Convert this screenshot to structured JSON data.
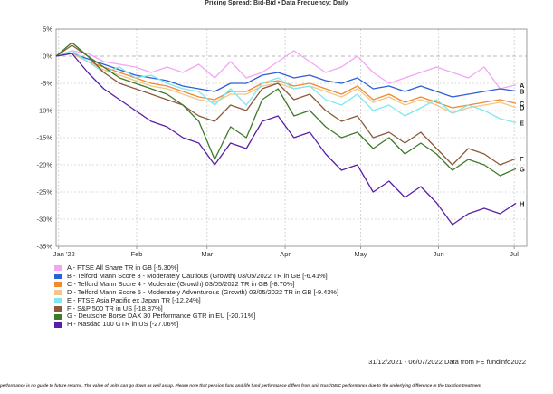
{
  "header": {
    "title": "Pricing Spread: Bid-Bid • Data Frequency: Daily"
  },
  "footer": {
    "source": "31/12/2021 - 06/07/2022 Data from FE fundinfo2022",
    "disclaimer": "performance is no guide to future returns. The value of units can go down as well as up. Please note that pension fund and life fund performance differs from unit trust/OEIC performance due to the underlying difference in the taxation treatment"
  },
  "chart_data": {
    "type": "line",
    "title": "Pricing Spread: Bid-Bid • Data Frequency: Daily",
    "xlabel": "",
    "ylabel": "",
    "ylim": [
      -35,
      5
    ],
    "yticks": [
      "5%",
      "0%",
      "-5%",
      "-10%",
      "-15%",
      "-20%",
      "-25%",
      "-30%",
      "-35%"
    ],
    "xticks": [
      "Jan '22",
      "Feb",
      "Mar",
      "Apr",
      "May",
      "Jun",
      "Jul"
    ],
    "x_start": "2021-12-31",
    "x_end": "2022-07-06",
    "grid": true,
    "legend_position": "bottom-left",
    "series": [
      {
        "name": "A - FTSE All Share TR in GB [-5.30%]",
        "label": "A",
        "color": "#f4a6f4",
        "values": [
          0,
          1,
          0.5,
          -1,
          -1.5,
          -2,
          -3,
          -2,
          -3,
          -1.5,
          -4,
          -1,
          -4,
          -3,
          -1,
          1,
          -1,
          -3,
          -2,
          0,
          -3,
          -5,
          -4,
          -3,
          -2,
          -3,
          -4,
          -2,
          -6,
          -5.3
        ]
      },
      {
        "name": "B - Telford Mann Score 3 - Moderately Cautious (Growth) 03/05/2022 TR in GB [-6.41%]",
        "label": "B",
        "color": "#2e5fd6",
        "values": [
          0,
          0.5,
          -0.5,
          -1.5,
          -2.5,
          -3.5,
          -4,
          -4.5,
          -5.5,
          -6,
          -6.5,
          -5,
          -5,
          -3.5,
          -3,
          -4,
          -3.5,
          -4.5,
          -5,
          -4,
          -6,
          -5.5,
          -6.5,
          -5.5,
          -6.5,
          -7.5,
          -7,
          -6.5,
          -6,
          -6.41
        ]
      },
      {
        "name": "C - Telford Mann Score 4 - Moderate (Growth) 03/05/2022 TR in GB [-8.70%]",
        "label": "C",
        "color": "#f08a2c",
        "values": [
          0,
          0.5,
          -1,
          -2,
          -3,
          -4,
          -5,
          -5.5,
          -6.5,
          -7.5,
          -8,
          -6.5,
          -6.5,
          -5,
          -4.5,
          -5.5,
          -5,
          -6,
          -7,
          -5.5,
          -8,
          -7,
          -8.5,
          -7.5,
          -8.5,
          -9.5,
          -9,
          -8.5,
          -8,
          -8.7
        ]
      },
      {
        "name": "D - Telford Mann Score 5 - Moderately Adventurous (Growth) 03/05/2022 TR in GB [-9.43%]",
        "label": "D",
        "color": "#f2c58a",
        "values": [
          0,
          0.5,
          -1,
          -2.5,
          -3.5,
          -4.5,
          -5.5,
          -6,
          -7,
          -8,
          -8.5,
          -7,
          -7,
          -5.5,
          -5,
          -6,
          -5.5,
          -6.5,
          -7.5,
          -6,
          -8.5,
          -7.5,
          -9,
          -8,
          -9,
          -10.5,
          -9.5,
          -9,
          -8.5,
          -9.43
        ]
      },
      {
        "name": "E - FTSE Asia Pacific ex Japan TR [-12.24%]",
        "label": "E",
        "color": "#7ee8f0",
        "values": [
          0,
          1,
          -1,
          -3,
          -2,
          -4,
          -3.5,
          -5,
          -6,
          -6.5,
          -9,
          -6,
          -9,
          -5,
          -4,
          -6,
          -5.5,
          -8,
          -9,
          -7,
          -10,
          -9,
          -11,
          -9.5,
          -8,
          -10.5,
          -9,
          -10,
          -11.5,
          -12.24
        ]
      },
      {
        "name": "F - S&P 500 TR in US [-18.87%]",
        "label": "F",
        "color": "#8b5a3c",
        "values": [
          0,
          2,
          0,
          -3,
          -5,
          -6,
          -7,
          -8,
          -9,
          -11,
          -12,
          -9,
          -10,
          -6,
          -5,
          -8,
          -7,
          -10,
          -12,
          -11,
          -15,
          -14,
          -16,
          -14,
          -17,
          -20,
          -17,
          -18,
          -20,
          -18.87
        ]
      },
      {
        "name": "G - Deutsche Borse DAX 30 Performance GTR in EU [-20.71%]",
        "label": "G",
        "color": "#3e7a2a",
        "values": [
          0,
          2.5,
          0,
          -2,
          -4,
          -5,
          -6,
          -7,
          -9,
          -12,
          -19,
          -13,
          -15,
          -8,
          -6,
          -11,
          -10,
          -13,
          -15,
          -14,
          -17,
          -15,
          -18,
          -16,
          -18,
          -21,
          -19,
          -20,
          -22,
          -20.71
        ]
      },
      {
        "name": "H - Nasdaq 100 GTR in US [-27.06%]",
        "label": "H",
        "color": "#5a1fa8",
        "values": [
          0,
          0.5,
          -3,
          -6,
          -8,
          -10,
          -12,
          -13,
          -15,
          -16,
          -20,
          -16,
          -17,
          -12,
          -11,
          -15,
          -14,
          -18,
          -21,
          -20,
          -25,
          -23,
          -26,
          -24,
          -27,
          -31,
          -29,
          -28,
          -29,
          -27.06
        ]
      }
    ]
  }
}
